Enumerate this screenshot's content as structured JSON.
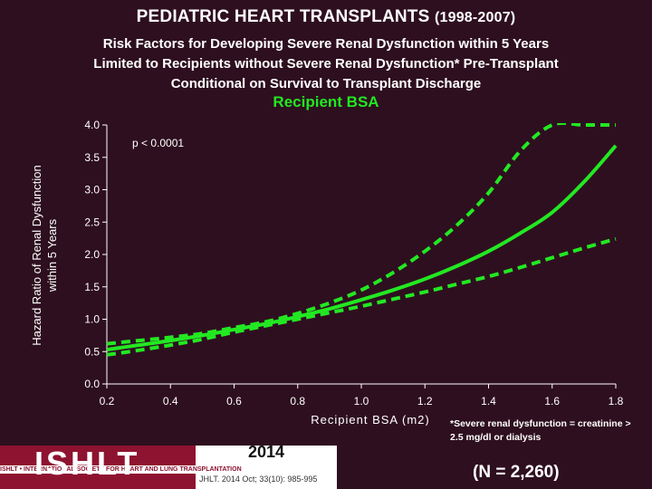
{
  "header": {
    "title": "PEDIATRIC HEART TRANSPLANTS",
    "title_years": "(1998-2007)",
    "subtitle_lines": [
      "Risk Factors for Developing Severe Renal Dysfunction within 5 Years",
      "Limited to Recipients without Severe Renal Dysfunction* Pre-Transplant",
      "Conditional on Survival to Transplant Discharge"
    ]
  },
  "chart_data": {
    "type": "line",
    "title": "Recipient BSA",
    "xlabel": "Recipient BSA (m2)",
    "ylabel_lines": [
      "Hazard Ratio of Renal Dysfunction",
      "within 5 Years"
    ],
    "xlim": [
      0.2,
      1.8
    ],
    "ylim": [
      0.0,
      4.0
    ],
    "x_ticks": [
      "0.2",
      "0.4",
      "0.6",
      "0.8",
      "1.0",
      "1.2",
      "1.4",
      "1.6",
      "1.8"
    ],
    "y_ticks": [
      "0.0",
      "0.5",
      "1.0",
      "1.5",
      "2.0",
      "2.5",
      "3.0",
      "3.5",
      "4.0"
    ],
    "annotation": "p < 0.0001",
    "grid": false,
    "series": [
      {
        "style": "solid",
        "x": [
          0.2,
          0.3,
          0.4,
          0.5,
          0.6,
          0.7,
          0.8,
          0.9,
          1.0,
          1.1,
          1.2,
          1.3,
          1.4,
          1.5,
          1.6,
          1.7,
          1.8
        ],
        "values": [
          0.53,
          0.6,
          0.67,
          0.75,
          0.84,
          0.93,
          1.04,
          1.16,
          1.3,
          1.45,
          1.62,
          1.82,
          2.05,
          2.33,
          2.65,
          3.12,
          3.68
        ]
      },
      {
        "style": "dashed",
        "x": [
          0.2,
          0.3,
          0.4,
          0.5,
          0.6,
          0.7,
          0.8,
          0.9,
          1.0,
          1.1,
          1.2,
          1.3,
          1.4,
          1.5,
          1.6,
          1.7,
          1.8
        ],
        "values": [
          0.62,
          0.67,
          0.72,
          0.78,
          0.87,
          0.96,
          1.09,
          1.25,
          1.45,
          1.72,
          2.05,
          2.45,
          2.95,
          3.6,
          4.0,
          4.0,
          4.0
        ]
      },
      {
        "style": "dashed",
        "x": [
          0.2,
          0.3,
          0.4,
          0.5,
          0.6,
          0.7,
          0.8,
          0.9,
          1.0,
          1.1,
          1.2,
          1.3,
          1.4,
          1.5,
          1.6,
          1.7,
          1.8
        ],
        "values": [
          0.45,
          0.52,
          0.6,
          0.69,
          0.8,
          0.9,
          1.0,
          1.1,
          1.2,
          1.31,
          1.42,
          1.54,
          1.66,
          1.8,
          1.95,
          2.1,
          2.24
        ]
      }
    ],
    "colors": {
      "line": "#22e822",
      "axis": "#ffffff",
      "background": "#2e0f1f"
    }
  },
  "footer": {
    "footnote": "*Severe renal dysfunction = creatinine > 2.5 mg/dl or dialysis",
    "n_label": "(N = 2,260)",
    "logo_text": "ISHLT",
    "logo_strip": "ISHLT • INTERNATIONAL SOCIETY FOR HEART AND LUNG TRANSPLANTATION",
    "year": "2014",
    "citation": "JHLT. 2014 Oct; 33(10): 985-995"
  }
}
